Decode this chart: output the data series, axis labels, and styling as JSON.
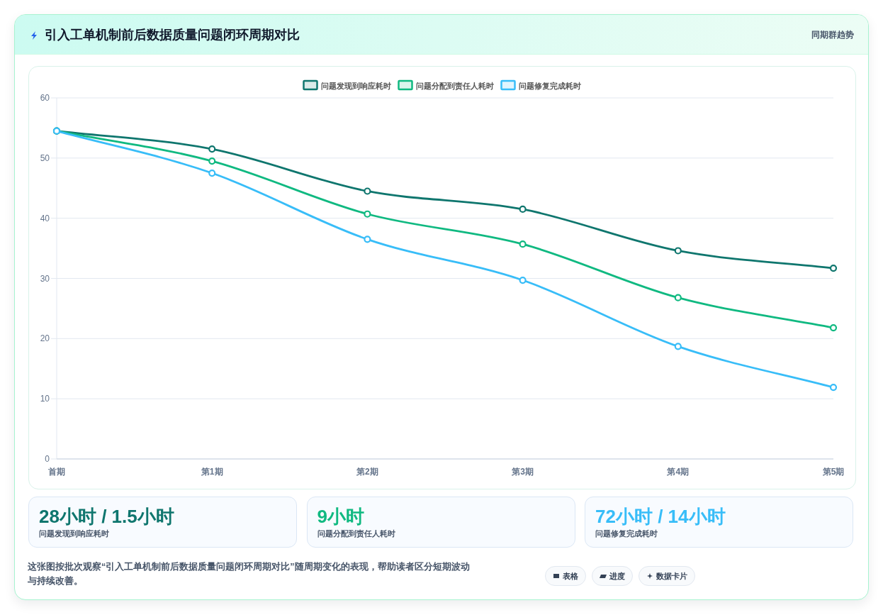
{
  "chart_data": [
    {
      "type": "line",
      "title": "引入工单机制前后数据质量问题闭环周期对比",
      "subtitle": "同期群趋势",
      "categories": [
        "首期",
        "第1期",
        "第2期",
        "第3期",
        "第4期",
        "第5期"
      ],
      "series": [
        {
          "name": "问题发现到响应耗时",
          "color": "#0f766e",
          "values": [
            54.5,
            51.5,
            44.5,
            41.5,
            34.6,
            31.7
          ]
        },
        {
          "name": "问题分配到责任人耗时",
          "color": "#10b981",
          "values": [
            54.5,
            49.5,
            40.7,
            35.7,
            26.8,
            21.8
          ]
        },
        {
          "name": "问题修复完成耗时",
          "color": "#38bdf8",
          "values": [
            54.5,
            47.5,
            36.5,
            29.7,
            18.7,
            11.9
          ]
        }
      ],
      "ylim": [
        0,
        60
      ],
      "yticks": [
        0,
        10,
        20,
        30,
        40,
        50,
        60
      ],
      "grid": "y",
      "legend": "top",
      "marker": "circle",
      "line_style": "solid"
    },
    {
      "type": "other",
      "annotations": [
        "28小时 / 1.5小时",
        "问题发现到响应耗时",
        "9小时",
        "问题分配到责任人耗时",
        "72小时 / 14小时",
        "问题修复完成耗时",
        "这张图按批次观察“引入工单机制前后数据质量问题闭环周期对比”随周期变化的表现，帮助读者区分短期波动与持续改善。",
        "表格",
        "进度",
        "数据卡片"
      ]
    }
  ]
}
